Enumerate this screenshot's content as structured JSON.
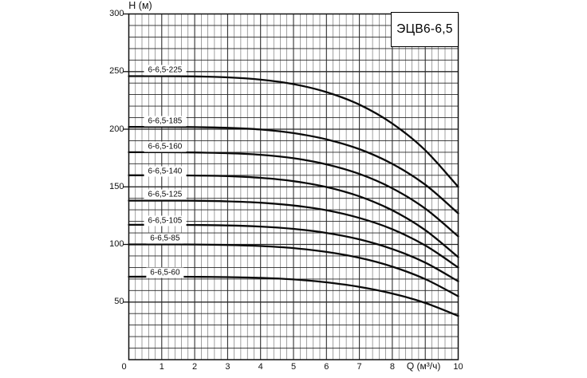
{
  "chart_data": {
    "type": "line",
    "title": "ЭЦВ6-6,5",
    "xlabel": "Q (м³/ч)",
    "ylabel": "H (м)",
    "xlim": [
      0,
      10
    ],
    "ylim": [
      0,
      300
    ],
    "grid": true,
    "x_minor_step": 0.2,
    "y_grid_step": 10,
    "x_tick_values": [
      0,
      1,
      2,
      3,
      4,
      5,
      6,
      7,
      8,
      10
    ],
    "x_tick_labels": [
      "0",
      "1",
      "2",
      "3",
      "4",
      "5",
      "6",
      "7",
      "8",
      "10"
    ],
    "y_tick_values": [
      50,
      100,
      150,
      200,
      250,
      300
    ],
    "y_tick_labels": [
      "50",
      "100",
      "150",
      "200",
      "250",
      "300"
    ],
    "xlabel_at_q": 8.95,
    "label_q": 1.1,
    "curve_color": "#0a0a0a",
    "grid_major_color": "#262626",
    "grid_minor_color": "#555555",
    "x": [
      0,
      1,
      2,
      3,
      4,
      5,
      6,
      7,
      8,
      9,
      10
    ],
    "series": [
      {
        "name": "6-6,5-225",
        "values": [
          246,
          246,
          245.8,
          245,
          243,
          239.1,
          232.2,
          221.3,
          204.9,
          181.7,
          150
        ],
        "label_h": 251
      },
      {
        "name": "6-6,5-185",
        "values": [
          202,
          202,
          201.8,
          201.2,
          199.7,
          196.6,
          191.2,
          182.7,
          169.9,
          151.8,
          127
        ],
        "label_h": 207
      },
      {
        "name": "6-6,5-160",
        "values": [
          180,
          180,
          179.8,
          179.2,
          177.8,
          174.8,
          169.5,
          161.2,
          148.7,
          131.1,
          107
        ],
        "label_h": 184.5
      },
      {
        "name": "6-6,5-140",
        "values": [
          160,
          160,
          159.8,
          159.3,
          157.8,
          154.9,
          149.8,
          141.7,
          129.6,
          112.4,
          89
        ],
        "label_h": 163
      },
      {
        "name": "6-6,5-125",
        "values": [
          138,
          138,
          137.9,
          137.4,
          136.2,
          133.8,
          129.7,
          123,
          113.2,
          99.1,
          80
        ],
        "label_h": 143
      },
      {
        "name": "6-6,5-105",
        "values": [
          117,
          117,
          116.9,
          116.5,
          115.5,
          113.5,
          110,
          104.4,
          96,
          84.2,
          68
        ],
        "label_h": 120.5
      },
      {
        "name": "6-6,5-85",
        "values": [
          100,
          100,
          99.9,
          99.5,
          98.6,
          96.8,
          93.5,
          88.4,
          80.7,
          69.9,
          55
        ],
        "label_h": 105.5
      },
      {
        "name": "6-6,5-60",
        "values": [
          72,
          72,
          71.9,
          71.6,
          71,
          69.6,
          67.1,
          63.2,
          57.4,
          49.2,
          38
        ],
        "label_h": 75.5
      }
    ]
  }
}
